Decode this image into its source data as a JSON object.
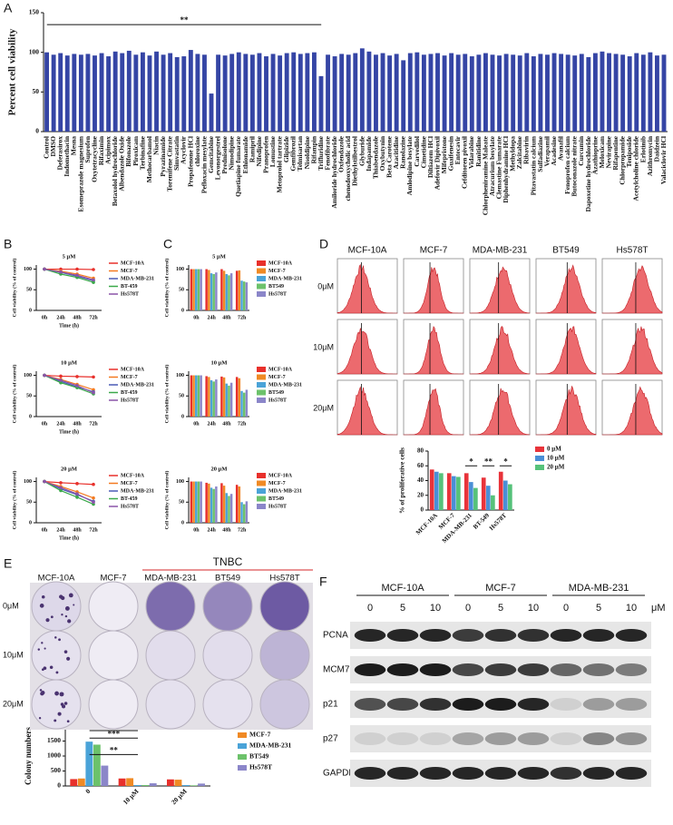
{
  "panel_labels": [
    "A",
    "B",
    "C",
    "D",
    "E",
    "F"
  ],
  "chart_data": [
    {
      "type": "bar",
      "ylabel": "Percent cell viability",
      "categories": [
        "Control",
        "DMSO",
        "Deferasirox",
        "Indomethacin",
        "Mesna",
        "Esomeprazole magnesium",
        "Suprofen",
        "Oxytetracycline",
        "Rifaximin",
        "Acipimox",
        "Betaxolol hydrochloride",
        "Albendazole Oxide",
        "Bifonazole",
        "Piroxicam",
        "Terbinafine",
        "Methocarbamol",
        "Niacin",
        "Pyrazinamide",
        "Toremifene Citrate",
        "Simvastatin",
        "Acyclovir",
        "Propafenone HCl",
        "chloroxine",
        "Pefloxacin mesylate",
        "Gemcitabine",
        "Levonorgestrel",
        "Prednisolone",
        "Nimodipine",
        "Quetiapine fumarate",
        "Ethionamide",
        "Ramipril",
        "Nifedipine",
        "Pranoprofen",
        "Lomustine",
        "Metoprolol tartrate",
        "Glipizide",
        "Gemfibrozil",
        "Telmisartan",
        "Nisoldipine",
        "Rifampin",
        "Trifluridine",
        "Fenofibrate",
        "Amiloride hydrochloride",
        "Oxfendazole",
        "chenodeoxycholic acid",
        "Diethylstilbestrol",
        "Glyburide",
        "Indapamide",
        "Thiabendazole",
        "Oxybutynin",
        "Beta Carotene",
        "Azacitidine",
        "Ranolazine",
        "Amlodipine besylate",
        "Carvedilol",
        "Cimetidine",
        "Diltiazem HCl",
        "Adefovir Dipivoxil",
        "Mifepristone",
        "Guaifenesin",
        "Entecavir",
        "Cefditoren pivoxil",
        "Vidarabine",
        "Ranitidine",
        "Chlorpheniramine Maleate",
        "Atracurium besylate",
        "Clemastine Fumarate",
        "Diphenhydramine HCl",
        "Methyldopa",
        "Zalcitabine",
        "Ribavirin",
        "Pitavastatin calcium",
        "Sulfadiazine",
        "Verapamil",
        "Acadesine",
        "Avanafil",
        "Fenoprofen calcium",
        "Butoconazole nitrate",
        "Curcumin",
        "Dapoxetine hydrochloride",
        "Azathioprine",
        "Meloxicam",
        "Nevirapine",
        "Rifapentine",
        "Chlorpropamide",
        "Teniposide",
        "Acetylcholine chloride",
        "Erlotinib",
        "Azithromycin",
        "Daidzein",
        "Valaciclovir HCl"
      ],
      "values": [
        100,
        97,
        99,
        96,
        98,
        97,
        98,
        96,
        99,
        95,
        101,
        99,
        102,
        97,
        100,
        96,
        101,
        97,
        99,
        94,
        95,
        103,
        98,
        97,
        48,
        97,
        96,
        98,
        100,
        98,
        97,
        99,
        95,
        98,
        96,
        99,
        100,
        98,
        99,
        100,
        70,
        97,
        95,
        98,
        97,
        99,
        105,
        101,
        97,
        99,
        96,
        98,
        90,
        99,
        100,
        97,
        98,
        99,
        96,
        99,
        97,
        98,
        95,
        97,
        99,
        97,
        96,
        98,
        97,
        96,
        99,
        95,
        98,
        97,
        99,
        98,
        97,
        96,
        98,
        94,
        99,
        101,
        99,
        98,
        97,
        95,
        99,
        97,
        100,
        96,
        97
      ],
      "color": "#3545a5",
      "ylim": [
        0,
        150
      ],
      "yticks": [
        0,
        50,
        100,
        150
      ],
      "annotations": [
        "**"
      ]
    },
    {
      "type": "line",
      "title": "5 μM",
      "xlabel": "Time (h)",
      "ylabel": "Cell viability (% of control)",
      "categories": [
        "0h",
        "24h",
        "48h",
        "72h"
      ],
      "ylim": [
        0,
        110
      ],
      "yticks": [
        0,
        50,
        100
      ],
      "legend": "right",
      "series": [
        {
          "name": "MCF-10A",
          "color": "#e8302b",
          "values": [
            100,
            100,
            100,
            99
          ]
        },
        {
          "name": "MCF-7",
          "color": "#f47a20",
          "values": [
            100,
            95,
            88,
            78
          ]
        },
        {
          "name": "MDA-MB-231",
          "color": "#4a5bb5",
          "values": [
            100,
            92,
            83,
            72
          ]
        },
        {
          "name": "BT-459",
          "color": "#3aa84a",
          "values": [
            100,
            88,
            80,
            68
          ]
        },
        {
          "name": "Hs578T",
          "color": "#8a54a8",
          "values": [
            100,
            93,
            85,
            74
          ]
        }
      ]
    },
    {
      "type": "line",
      "title": "10 μM",
      "xlabel": "Time (h)",
      "ylabel": "Cell viability (% of control)",
      "categories": [
        "0h",
        "24h",
        "48h",
        "72h"
      ],
      "ylim": [
        0,
        110
      ],
      "yticks": [
        0,
        50,
        100
      ],
      "legend": "right",
      "series": [
        {
          "name": "MCF-10A",
          "color": "#e8302b",
          "values": [
            100,
            98,
            97,
            96
          ]
        },
        {
          "name": "MCF-7",
          "color": "#f47a20",
          "values": [
            100,
            90,
            78,
            65
          ]
        },
        {
          "name": "MDA-MB-231",
          "color": "#4a5bb5",
          "values": [
            100,
            85,
            72,
            60
          ]
        },
        {
          "name": "BT-459",
          "color": "#3aa84a",
          "values": [
            100,
            82,
            70,
            55
          ]
        },
        {
          "name": "Hs578T",
          "color": "#8a54a8",
          "values": [
            100,
            88,
            75,
            58
          ]
        }
      ]
    },
    {
      "type": "line",
      "title": "20 μM",
      "xlabel": "Time (h)",
      "ylabel": "Cell viability (% of control)",
      "categories": [
        "0h",
        "24h",
        "48h",
        "72h"
      ],
      "ylim": [
        0,
        110
      ],
      "yticks": [
        0,
        50,
        100
      ],
      "legend": "right",
      "series": [
        {
          "name": "MCF-10A",
          "color": "#e8302b",
          "values": [
            100,
            97,
            95,
            93
          ]
        },
        {
          "name": "MCF-7",
          "color": "#f47a20",
          "values": [
            100,
            88,
            75,
            60
          ]
        },
        {
          "name": "MDA-MB-231",
          "color": "#4a5bb5",
          "values": [
            100,
            82,
            68,
            52
          ]
        },
        {
          "name": "BT-459",
          "color": "#3aa84a",
          "values": [
            100,
            78,
            62,
            45
          ]
        },
        {
          "name": "Hs578T",
          "color": "#8a54a8",
          "values": [
            100,
            85,
            70,
            50
          ]
        }
      ]
    },
    {
      "type": "bar",
      "title": "5 μM",
      "ylabel": "Cell viability (% of control)",
      "categories": [
        "0h",
        "24h",
        "48h",
        "72h"
      ],
      "ylim": [
        0,
        110
      ],
      "yticks": [
        0,
        50,
        100
      ],
      "legend": "right",
      "series": [
        {
          "name": "MCF-10A",
          "color": "#e8302b",
          "values": [
            100,
            100,
            100,
            96
          ]
        },
        {
          "name": "MCF-7",
          "color": "#f08a24",
          "values": [
            100,
            98,
            96,
            97
          ]
        },
        {
          "name": "MDA-MB-231",
          "color": "#4aa3d8",
          "values": [
            100,
            90,
            88,
            72
          ]
        },
        {
          "name": "BT549",
          "color": "#6cc26b",
          "values": [
            100,
            88,
            85,
            70
          ]
        },
        {
          "name": "Hs578T",
          "color": "#8b86c9",
          "values": [
            100,
            92,
            90,
            68
          ]
        }
      ]
    },
    {
      "type": "bar",
      "title": "10 μM",
      "ylabel": "Cell viability (% of control)",
      "categories": [
        "0h",
        "24h",
        "48h",
        "72h"
      ],
      "ylim": [
        0,
        110
      ],
      "yticks": [
        0,
        50,
        100
      ],
      "legend": "right",
      "series": [
        {
          "name": "MCF-10A",
          "color": "#e8302b",
          "values": [
            100,
            98,
            97,
            96
          ]
        },
        {
          "name": "MCF-7",
          "color": "#f08a24",
          "values": [
            100,
            96,
            95,
            93
          ]
        },
        {
          "name": "MDA-MB-231",
          "color": "#4aa3d8",
          "values": [
            100,
            88,
            80,
            62
          ]
        },
        {
          "name": "BT549",
          "color": "#6cc26b",
          "values": [
            100,
            85,
            75,
            58
          ]
        },
        {
          "name": "Hs578T",
          "color": "#8b86c9",
          "values": [
            100,
            90,
            82,
            65
          ]
        }
      ]
    },
    {
      "type": "bar",
      "title": "20 μM",
      "ylabel": "Cell viability (% of control)",
      "categories": [
        "0h",
        "24h",
        "48h",
        "72h"
      ],
      "ylim": [
        0,
        110
      ],
      "yticks": [
        0,
        50,
        100
      ],
      "legend": "right",
      "series": [
        {
          "name": "MCF-10A",
          "color": "#e8302b",
          "values": [
            100,
            97,
            96,
            92
          ]
        },
        {
          "name": "MCF-7",
          "color": "#f08a24",
          "values": [
            100,
            95,
            90,
            88
          ]
        },
        {
          "name": "MDA-MB-231",
          "color": "#4aa3d8",
          "values": [
            100,
            85,
            72,
            50
          ]
        },
        {
          "name": "BT549",
          "color": "#6cc26b",
          "values": [
            100,
            82,
            65,
            45
          ]
        },
        {
          "name": "Hs578T",
          "color": "#8b86c9",
          "values": [
            100,
            88,
            70,
            52
          ]
        }
      ]
    },
    {
      "type": "bar",
      "ylabel": "% of proliferative cells",
      "categories": [
        "MCF-10A",
        "MCF-7",
        "MDA-MB-231",
        "BT-549",
        "Hs578T"
      ],
      "ylim": [
        0,
        80
      ],
      "yticks": [
        0,
        20,
        40,
        60,
        80
      ],
      "legend": "right",
      "annotations": [
        "*",
        "**",
        "*"
      ],
      "series": [
        {
          "name": "0 μM",
          "color": "#e8333a",
          "values": [
            55,
            50,
            50,
            44,
            52
          ]
        },
        {
          "name": "10 μM",
          "color": "#4a8fd6",
          "values": [
            52,
            46,
            38,
            33,
            40
          ]
        },
        {
          "name": "20 μM",
          "color": "#56c27a",
          "values": [
            50,
            45,
            30,
            20,
            35
          ]
        }
      ]
    },
    {
      "type": "bar",
      "ylabel": "Colony numbers",
      "categories": [
        "0",
        "10 μM",
        "20 μM"
      ],
      "ylim": [
        0,
        2000
      ],
      "yticks": [
        0,
        500,
        1000,
        1500,
        2000
      ],
      "legend": "right",
      "annotations": [
        "***",
        "***",
        "**"
      ],
      "series": [
        {
          "name": "MCF-10A",
          "color": "#e8302b",
          "values": [
            230,
            250,
            220
          ]
        },
        {
          "name": "MCF-7",
          "color": "#f08a24",
          "values": [
            250,
            260,
            210
          ]
        },
        {
          "name": "MDA-MB-231",
          "color": "#4aa3d8",
          "values": [
            1480,
            30,
            30
          ]
        },
        {
          "name": "BT549",
          "color": "#6cc26b",
          "values": [
            1380,
            30,
            20
          ]
        },
        {
          "name": "Hs578T",
          "color": "#8b86c9",
          "values": [
            680,
            90,
            80
          ]
        }
      ]
    }
  ],
  "flow_cytometry": {
    "columns": [
      "MCF-10A",
      "MCF-7",
      "MDA-MB-231",
      "BT549",
      "Hs578T"
    ],
    "rows": [
      "0μM",
      "10μM",
      "20μM"
    ]
  },
  "colony_assay": {
    "group_label": "TNBC",
    "columns": [
      "MCF-10A",
      "MCF-7",
      "MDA-MB-231",
      "BT549",
      "Hs578T"
    ],
    "rows": [
      "0μM",
      "10μM",
      "20μM"
    ]
  },
  "western_blot": {
    "groups": [
      "MCF-10A",
      "MCF-7",
      "MDA-MB-231"
    ],
    "doses": [
      "0",
      "5",
      "10"
    ],
    "unit": "μM",
    "proteins": [
      "PCNA",
      "MCM7",
      "p21",
      "p27",
      "GAPDH"
    ]
  }
}
